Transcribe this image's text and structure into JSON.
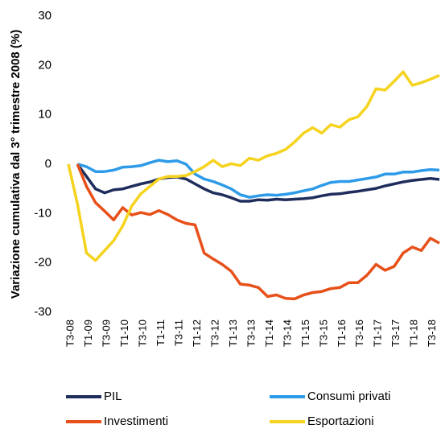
{
  "chart_data": {
    "type": "line",
    "y_label": "Variazione cumulativa  dal 3° trimestre 2008 (%)",
    "categories": [
      "T3-08",
      null,
      "T1-09",
      null,
      "T3-09",
      null,
      "T1-10",
      null,
      "T3-10",
      null,
      "T1-11",
      null,
      "T3-11",
      null,
      "T1-12",
      null,
      "T3-12",
      null,
      "T1-13",
      null,
      "T3-13",
      null,
      "T1-14",
      null,
      "T3-14",
      null,
      "T1-15",
      null,
      "T3-15",
      null,
      "T1-16",
      null,
      "T3-16",
      null,
      "T1-17",
      null,
      "T3-17",
      null,
      "T1-18",
      null,
      "T3-18",
      null
    ],
    "series": [
      {
        "name": "PIL",
        "color": "#1f2d5c",
        "values": [
          null,
          0,
          -2.5,
          -5,
          -5.8,
          -5.2,
          -5,
          -4.5,
          -4,
          -3.6,
          -3,
          -2.7,
          -2.6,
          -3,
          -4,
          -5,
          -5.8,
          -6.2,
          -6.8,
          -7.5,
          -7.5,
          -7.2,
          -7.3,
          -7.1,
          -7.2,
          -7.1,
          -7,
          -6.8,
          -6.4,
          -6.1,
          -6,
          -5.7,
          -5.5,
          -5.2,
          -4.9,
          -4.4,
          -4,
          -3.6,
          -3.3,
          -3.1,
          -2.9,
          -3.1
        ]
      },
      {
        "name": "Consumi privati",
        "color": "#2e9be8",
        "values": [
          null,
          0,
          -0.5,
          -1.5,
          -1.5,
          -1.2,
          -0.6,
          -0.5,
          -0.3,
          0.3,
          0.8,
          0.5,
          0.7,
          0,
          -2,
          -3,
          -3.5,
          -4.2,
          -5,
          -6.2,
          -6.7,
          -6.4,
          -6.2,
          -6.3,
          -6.1,
          -5.8,
          -5.4,
          -5,
          -4.3,
          -3.7,
          -3.5,
          -3.5,
          -3.2,
          -2.9,
          -2.6,
          -2,
          -2,
          -1.6,
          -1.6,
          -1.3,
          -1.1,
          -1.2
        ]
      },
      {
        "name": "Investimenti",
        "color": "#e8501a",
        "values": [
          null,
          0,
          -4.5,
          -7.8,
          -9.5,
          -11.3,
          -8.8,
          -10.3,
          -9.8,
          -10.2,
          -9.4,
          -10.2,
          -11.3,
          -12,
          -12.3,
          -18,
          -19.2,
          -20.3,
          -21.7,
          -24.3,
          -24.5,
          -25,
          -26.8,
          -26.5,
          -27.2,
          -27.3,
          -26.5,
          -26,
          -25.8,
          -25.2,
          -25,
          -24,
          -24,
          -22.5,
          -20.3,
          -21.5,
          -20.7,
          -18,
          -16.8,
          -17.5,
          -15,
          -16
        ]
      },
      {
        "name": "Esportazioni",
        "color": "#f5d31f",
        "values": [
          0,
          -8,
          -18,
          -19.5,
          -17.5,
          -15.5,
          -12.5,
          -8.5,
          -6,
          -4.5,
          -3,
          -2.5,
          -2.5,
          -2.3,
          -1.5,
          -0.5,
          0.8,
          -0.5,
          0.1,
          -0.3,
          1.2,
          0.8,
          1.7,
          2.2,
          3,
          4.5,
          6.3,
          7.4,
          6.3,
          8,
          7.5,
          9,
          9.6,
          11.7,
          15.3,
          15,
          16.8,
          18.7,
          16,
          16.5,
          17.2,
          18
        ]
      }
    ],
    "ylim": [
      -30,
      30
    ],
    "yticks": [
      -30,
      -20,
      -10,
      0,
      10,
      20,
      30
    ],
    "legend": "bottom"
  }
}
